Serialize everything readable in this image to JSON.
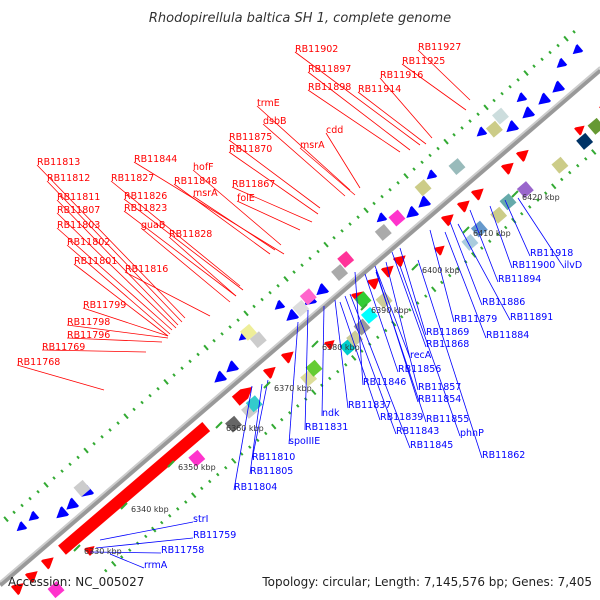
{
  "title": "Rhodopirellula baltica SH 1, complete genome",
  "footer": {
    "accession": "Accession: NC_005027",
    "summary": "Topology: circular; Length: 7,145,576 bp; Genes: 7,405"
  },
  "colors": {
    "forward": "#ff0000",
    "reverse": "#0000ff",
    "backbone": "#999999",
    "gc_dots": "#33aa33"
  },
  "scale_labels": [
    "6330 kbp",
    "6340 kbp",
    "6350 kbp",
    "6360 kbp",
    "6370 kbp",
    "6380 kbp",
    "6390 kbp",
    "6400 kbp",
    "6410 kbp",
    "6420 kbp"
  ],
  "forward_labels": [
    "RB11902",
    "RB11927",
    "RB11925",
    "RB11897",
    "RB11916",
    "RB11898",
    "RB11914",
    "trmE",
    "dsbB",
    "cdd",
    "RB11875",
    "msrA",
    "RB11870",
    "RB11844",
    "hofF",
    "RB11813",
    "RB11827",
    "RB11848",
    "msrA",
    "RB11812",
    "RB11867",
    "RB11826",
    "folE",
    "RB11811",
    "RB11823",
    "RB11807",
    "guaB",
    "RB11803",
    "RB11828",
    "RB11802",
    "RB11801",
    "RB11816",
    "RB11799",
    "RB11798",
    "RB11796",
    "RB11769",
    "RB11768"
  ],
  "reverse_labels": [
    "RB11918",
    "RB11900",
    "ilvD",
    "RB11894",
    "RB11886",
    "RB11879",
    "RB11891",
    "RB11869",
    "RB11884",
    "RB11868",
    "recA",
    "RB11856",
    "RB11846",
    "RB11857",
    "RB11854",
    "RB11837",
    "ndk",
    "RB11839",
    "RB11855",
    "RB11831",
    "RB11843",
    "phnP",
    "RB11845",
    "RB11862",
    "spoIIIE",
    "RB11810",
    "RB11805",
    "RB11804",
    "strI",
    "RB11759",
    "RB11758",
    "rrmA"
  ]
}
